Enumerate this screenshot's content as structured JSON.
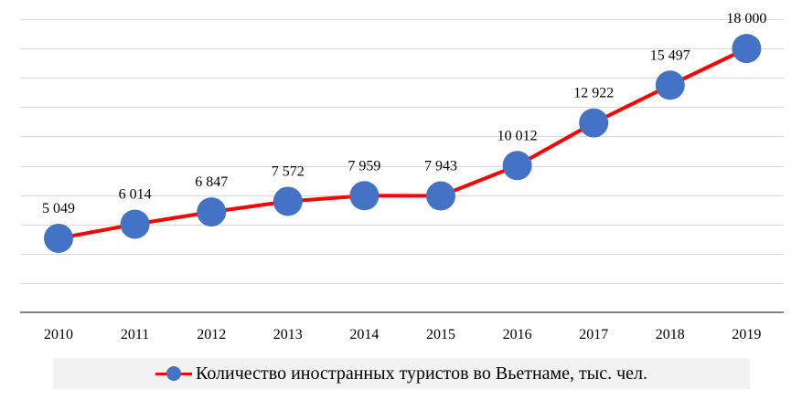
{
  "chart_data": {
    "type": "line",
    "categories": [
      "2010",
      "2011",
      "2012",
      "2013",
      "2014",
      "2015",
      "2016",
      "2017",
      "2018",
      "2019"
    ],
    "series": [
      {
        "name": "Количество иностранных туристов во Вьетнаме, тыс. чел.",
        "values": [
          5049,
          6014,
          6847,
          7572,
          7959,
          7943,
          10012,
          12922,
          15497,
          18000
        ],
        "labels": [
          "5 049",
          "6 014",
          "6 847",
          "7 572",
          "7 959",
          "7 943",
          "10 012",
          "12 922",
          "15 497",
          "18 000"
        ],
        "line_color": "#ff0000",
        "marker_color": "#4472c4"
      }
    ],
    "ylim": [
      0,
      20000
    ],
    "y_gridlines": true,
    "y_axis_labels_shown": false,
    "legend_position": "bottom"
  }
}
